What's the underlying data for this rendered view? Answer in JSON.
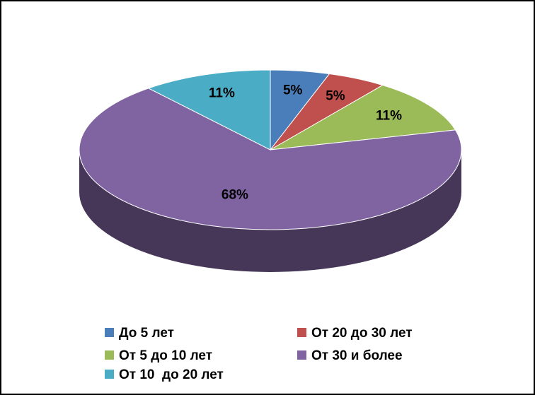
{
  "chart_data": {
    "type": "pie",
    "categories": [
      "До 5 лет",
      "От 20 до 30 лет",
      "От 5 до 10 лет",
      "От 30 и более",
      "От 10  до 20 лет"
    ],
    "values": [
      5,
      5,
      11,
      68,
      11
    ],
    "value_labels": [
      "5%",
      "5%",
      "11%",
      "68%",
      "11%"
    ],
    "colors": [
      "#4a7ebb",
      "#c0504d",
      "#9bbb59",
      "#8064a2",
      "#4bacc6"
    ]
  }
}
